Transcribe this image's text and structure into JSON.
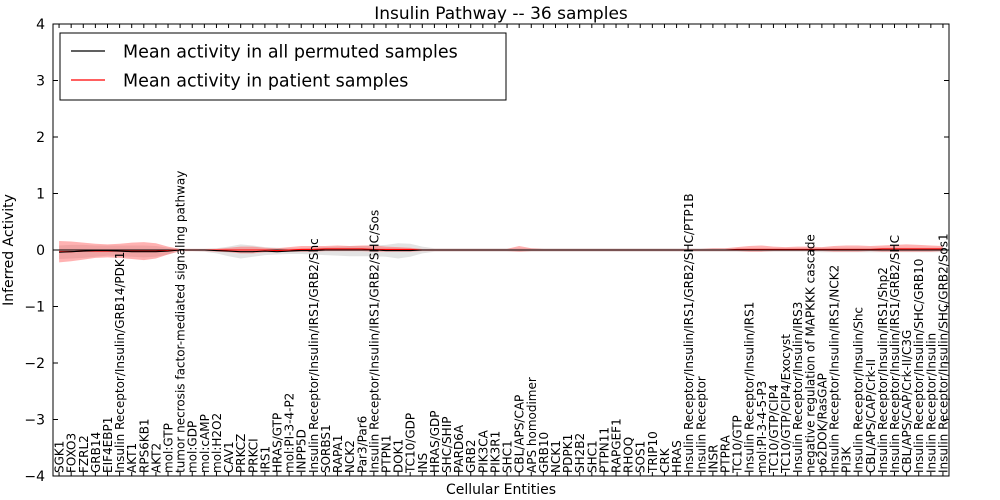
{
  "chart_data": {
    "type": "line",
    "title": "Insulin Pathway -- 36 samples",
    "xlabel": "Cellular Entities",
    "ylabel": "Inferred Activity",
    "ylim": [
      -4,
      4
    ],
    "yticks": [
      -4,
      -3,
      -2,
      -1,
      0,
      1,
      2,
      3,
      4
    ],
    "ytick_labels": [
      "−4",
      "−3",
      "−2",
      "−1",
      "0",
      "1",
      "2",
      "3",
      "4"
    ],
    "grid": false,
    "legend_position": "top-left",
    "legend": [
      {
        "label": "Mean activity in all permuted samples",
        "color": "#000000"
      },
      {
        "label": "Mean activity in patient samples",
        "color": "#ff0000"
      }
    ],
    "categories": [
      "SGK1",
      "FOXO3",
      "FZRL2",
      "GRB14",
      "EIF4EBP1",
      "Insulin Receptor/Insulin/GRB14/PDK1",
      "AKT1",
      "RPS6KB1",
      "AKT2",
      "mol:GTP",
      "tumor necrosis factor-mediated signaling pathway",
      "mol:GDP",
      "mol:cAMP",
      "mol:H2O2",
      "CAV1",
      "PRKCZ",
      "PRKCI",
      "IRS1",
      "HRAS/GTP",
      "mol:PI-3-4-P2",
      "INPP5D",
      "Insulin Receptor/Insulin/IRS1/GRB2/Shc",
      "SORBS1",
      "RAPA1",
      "NCK2",
      "Par3/Par6",
      "Insulin Receptor/Insulin/IRS1/GRB2/SHC/Sos",
      "PTPN1",
      "DOK1",
      "TC10/GDP",
      "INS",
      "HRAS/GDP",
      "SHC/SHIP",
      "PARD6A",
      "GRB2",
      "PIK3CA",
      "PIK3R1",
      "SHC1",
      "CBL/APS/CAP",
      "APS homodimer",
      "GRB10",
      "NCK1",
      "PDPK1",
      "SH2B2",
      "SHC1",
      "PTPN11",
      "RAPGEF1",
      "RHOQ",
      "SOS1",
      "TRIP10",
      "CRK",
      "HRAS",
      "Insulin Receptor/Insulin/IRS1/GRB2/SHC/PTP1B",
      "Insulin Receptor",
      "INSR",
      "PTPRA",
      "TC10/GTP",
      "Insulin Receptor/Insulin/IRS1",
      "mol:PI-3-4-5-P3",
      "TC10/GTP/CIP4",
      "TC10/GTP/CIP4/Exocyst",
      "Insulin Receptor/Insulin/IRS3",
      "negative regulation of MAPKKK cascade",
      "p62DOK/RasGAP",
      "Insulin Receptor/Insulin/IRS1/NCK2",
      "PI3K",
      "Insulin Receptor/Insulin/Shc",
      "CBL/APS/CAP/Crk-II",
      "Insulin Receptor/Insulin/IRS1/Shp2",
      "Insulin Receptor/Insulin/IRS1/GRB2/SHC",
      "CBL/APS/CAP/Crk-II/C3G",
      "Insulin Receptor/Insulin/SHC/GRB10",
      "Insulin Receptor/Insulin",
      "Insulin Receptor/Insulin/SHC/GRB2/Sos1"
    ],
    "series": [
      {
        "name": "Mean activity in all permuted samples",
        "color": "#000000",
        "values": [
          -0.04,
          -0.03,
          -0.02,
          -0.01,
          -0.01,
          -0.02,
          -0.03,
          -0.03,
          -0.03,
          -0.02,
          0,
          0,
          0,
          -0.01,
          -0.02,
          -0.03,
          -0.03,
          -0.02,
          -0.03,
          -0.02,
          -0.01,
          -0.01,
          0,
          0,
          0,
          0,
          0,
          -0.01,
          -0.01,
          -0.01,
          0,
          0,
          0,
          0,
          0,
          0,
          0,
          0,
          0,
          0,
          0,
          0,
          0,
          0,
          0,
          0,
          0,
          0,
          0,
          0,
          0,
          0,
          0,
          0,
          0,
          0,
          0,
          0,
          0,
          0,
          0,
          0,
          0,
          0,
          0,
          0,
          0,
          0,
          0,
          0,
          0,
          0,
          0,
          0
        ],
        "upper": [
          0.08,
          0.09,
          0.09,
          0.08,
          0.08,
          0.08,
          0.08,
          0.08,
          0.07,
          0.04,
          0.02,
          0.02,
          0.02,
          0.03,
          0.06,
          0.1,
          0.08,
          0.05,
          0.04,
          0.03,
          0.03,
          0.04,
          0.05,
          0.06,
          0.07,
          0.07,
          0.08,
          0.09,
          0.12,
          0.11,
          0.06,
          0.03,
          0.03,
          0.03,
          0.03,
          0.03,
          0.03,
          0.03,
          0.03,
          0.03,
          0.03,
          0.03,
          0.03,
          0.03,
          0.03,
          0.03,
          0.03,
          0.03,
          0.03,
          0.03,
          0.03,
          0.03,
          0.03,
          0.03,
          0.03,
          0.03,
          0.03,
          0.03,
          0.03,
          0.03,
          0.03,
          0.03,
          0.03,
          0.04,
          0.04,
          0.04,
          0.04,
          0.04,
          0.04,
          0.04,
          0.04,
          0.04,
          0.04,
          0.04
        ],
        "lower": [
          -0.16,
          -0.15,
          -0.14,
          -0.12,
          -0.1,
          -0.11,
          -0.12,
          -0.13,
          -0.12,
          -0.08,
          -0.02,
          -0.02,
          -0.03,
          -0.06,
          -0.11,
          -0.15,
          -0.12,
          -0.09,
          -0.08,
          -0.07,
          -0.07,
          -0.08,
          -0.09,
          -0.1,
          -0.11,
          -0.11,
          -0.11,
          -0.12,
          -0.15,
          -0.12,
          -0.06,
          -0.03,
          -0.03,
          -0.03,
          -0.03,
          -0.03,
          -0.03,
          -0.03,
          -0.03,
          -0.03,
          -0.03,
          -0.03,
          -0.03,
          -0.03,
          -0.03,
          -0.03,
          -0.03,
          -0.03,
          -0.03,
          -0.03,
          -0.03,
          -0.03,
          -0.03,
          -0.03,
          -0.03,
          -0.03,
          -0.03,
          -0.03,
          -0.03,
          -0.03,
          -0.03,
          -0.03,
          -0.03,
          -0.04,
          -0.04,
          -0.04,
          -0.04,
          -0.04,
          -0.04,
          -0.04,
          -0.04,
          -0.04,
          -0.04,
          -0.04
        ]
      },
      {
        "name": "Mean activity in patient samples",
        "color": "#ff0000",
        "values": [
          -0.03,
          -0.03,
          -0.02,
          -0.02,
          -0.02,
          -0.02,
          -0.02,
          -0.02,
          -0.02,
          -0.01,
          0,
          0,
          0,
          0,
          0,
          0,
          0,
          0,
          -0.01,
          0,
          0.01,
          0.01,
          0.02,
          0.02,
          0.02,
          0.02,
          0.01,
          0.01,
          0.01,
          0.01,
          0,
          0,
          0,
          0,
          0,
          0,
          0,
          0,
          0,
          0,
          0,
          0,
          0,
          0,
          0,
          0,
          0,
          0,
          0,
          0,
          0,
          0,
          0,
          0,
          0,
          0,
          0.01,
          0.01,
          0.01,
          0.01,
          0.01,
          0.01,
          0.01,
          0.01,
          0.01,
          0.01,
          0.01,
          0.01,
          0.02,
          0.02,
          0.02,
          0.02,
          0.02,
          0.02
        ],
        "upper": [
          0.16,
          0.15,
          0.13,
          0.11,
          0.1,
          0.11,
          0.13,
          0.14,
          0.12,
          0.06,
          0.02,
          0.02,
          0.02,
          0.02,
          0.04,
          0.06,
          0.06,
          0.04,
          0.03,
          0.05,
          0.07,
          0.07,
          0.07,
          0.08,
          0.07,
          0.08,
          0.08,
          0.06,
          0.05,
          0.04,
          0.02,
          0.02,
          0.02,
          0.02,
          0.02,
          0.02,
          0.02,
          0.02,
          0.07,
          0.03,
          0.02,
          0.02,
          0.02,
          0.02,
          0.02,
          0.02,
          0.02,
          0.02,
          0.02,
          0.02,
          0.02,
          0.02,
          0.02,
          0.02,
          0.03,
          0.03,
          0.05,
          0.07,
          0.08,
          0.06,
          0.05,
          0.06,
          0.06,
          0.05,
          0.07,
          0.08,
          0.08,
          0.07,
          0.08,
          0.09,
          0.1,
          0.09,
          0.08,
          0.07
        ],
        "lower": [
          -0.22,
          -0.2,
          -0.17,
          -0.14,
          -0.13,
          -0.14,
          -0.16,
          -0.18,
          -0.15,
          -0.08,
          -0.02,
          -0.02,
          -0.02,
          -0.03,
          -0.04,
          -0.06,
          -0.06,
          -0.04,
          -0.04,
          -0.03,
          -0.03,
          -0.03,
          -0.02,
          -0.02,
          -0.02,
          -0.02,
          -0.03,
          -0.03,
          -0.03,
          -0.03,
          -0.02,
          -0.02,
          -0.02,
          -0.02,
          -0.02,
          -0.02,
          -0.02,
          -0.02,
          -0.03,
          -0.02,
          -0.02,
          -0.02,
          -0.02,
          -0.02,
          -0.02,
          -0.02,
          -0.02,
          -0.02,
          -0.02,
          -0.02,
          -0.02,
          -0.02,
          -0.02,
          -0.02,
          -0.02,
          -0.02,
          -0.02,
          -0.03,
          -0.03,
          -0.02,
          -0.02,
          -0.02,
          -0.02,
          -0.02,
          -0.03,
          -0.03,
          -0.03,
          -0.02,
          -0.03,
          -0.03,
          -0.03,
          -0.03,
          -0.03,
          -0.02
        ]
      }
    ],
    "band_colors": {
      "permuted": "#b0b0b0",
      "patient": "#ff5555"
    },
    "zero_line_color": "#000000"
  }
}
